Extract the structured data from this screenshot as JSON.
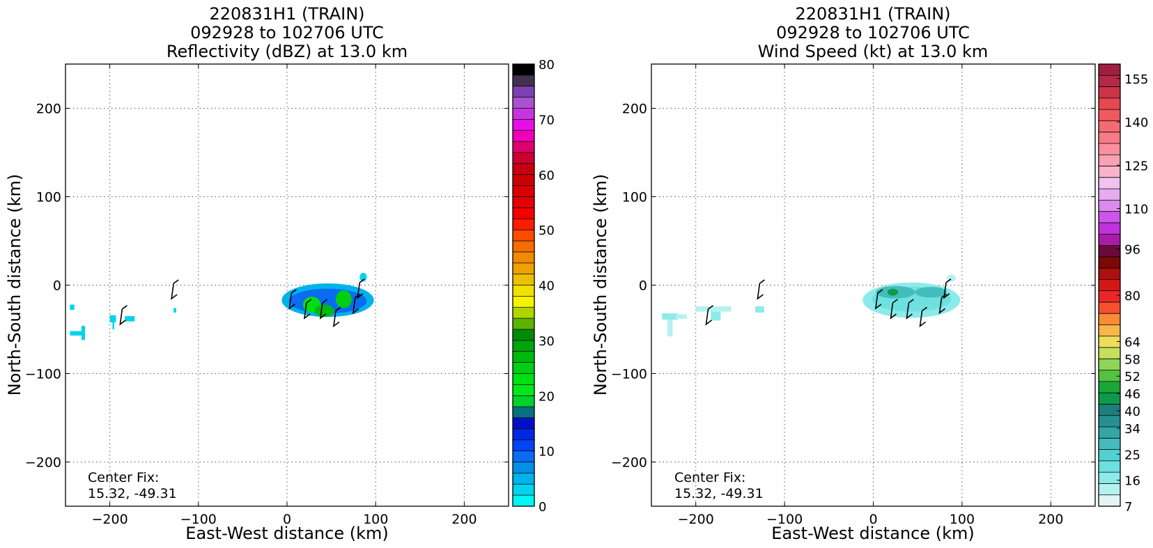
{
  "chart_data": [
    {
      "type": "heatmap",
      "title_lines": [
        "220831H1 (TRAIN)",
        "092928 to 102706 UTC",
        "Reflectivity (dBZ) at 13.0 km"
      ],
      "xlabel": "East-West distance (km)",
      "ylabel": "North-South distance (km)",
      "xlim": [
        -250,
        250
      ],
      "ylim": [
        -250,
        250
      ],
      "xticks": [
        -200,
        -100,
        0,
        100,
        200
      ],
      "xtick_labels": [
        "−200",
        "−100",
        "0",
        "100",
        "200"
      ],
      "yticks": [
        200,
        100,
        0,
        -100,
        -200
      ],
      "ytick_labels": [
        "200",
        "100",
        "0",
        "−100",
        "−200"
      ],
      "grid": true,
      "annotation_lines": [
        "Center Fix:",
        "15.32, -49.31"
      ],
      "colorbar": {
        "min": 0,
        "max": 80,
        "tick_values": [
          0,
          10,
          20,
          30,
          40,
          50,
          60,
          70,
          80
        ],
        "tick_labels": [
          "0",
          "10",
          "20",
          "30",
          "40",
          "50",
          "60",
          "70",
          "80"
        ],
        "colors": [
          "#00f5f5",
          "#00d3ef",
          "#00b2ea",
          "#0090e6",
          "#0a6cf0",
          "#0044f5",
          "#0028e0",
          "#0010c8",
          "#08707e",
          "#00d229",
          "#00e81c",
          "#00de14",
          "#00cf12",
          "#00b90e",
          "#00a40b",
          "#008b07",
          "#5cb400",
          "#b0d400",
          "#f6f300",
          "#f2e000",
          "#ebc000",
          "#eea200",
          "#f28a00",
          "#f56c00",
          "#fa4c00",
          "#fc1c00",
          "#f50000",
          "#e40000",
          "#d80000",
          "#cd0000",
          "#c70010",
          "#cc0030",
          "#df0070",
          "#f000b8",
          "#e60ee6",
          "#c835dc",
          "#aa50d2",
          "#7e40b0",
          "#443050",
          "#000000"
        ]
      },
      "echo_regions": [
        {
          "type": "rect",
          "x1": -245,
          "x2": -240,
          "y1": -22,
          "y2": -28,
          "color": "#00d3ef"
        },
        {
          "type": "rect",
          "x1": -245,
          "x2": -228,
          "y1": -52,
          "y2": -57,
          "color": "#00d3ef"
        },
        {
          "type": "rect",
          "x1": -232,
          "x2": -228,
          "y1": -46,
          "y2": -62,
          "color": "#00d3ef"
        },
        {
          "type": "rect",
          "x1": -200,
          "x2": -193,
          "y1": -34,
          "y2": -42,
          "color": "#00d3ef"
        },
        {
          "type": "rect",
          "x1": -197,
          "x2": -195,
          "y1": -42,
          "y2": -50,
          "color": "#00d3ef"
        },
        {
          "type": "rect",
          "x1": -183,
          "x2": -172,
          "y1": -35,
          "y2": -41,
          "color": "#00d3ef"
        },
        {
          "type": "rect",
          "x1": -128,
          "x2": -125,
          "y1": -26,
          "y2": -31,
          "color": "#00d3ef"
        },
        {
          "type": "ellipse",
          "cx": 46,
          "cy": -17,
          "rx": 52,
          "ry": 19,
          "color": "#00b2ea"
        },
        {
          "type": "ellipse",
          "cx": 46,
          "cy": -18,
          "rx": 44,
          "ry": 14,
          "color": "#0a6cf0"
        },
        {
          "type": "ellipse",
          "cx": 28,
          "cy": -22,
          "rx": 10,
          "ry": 9,
          "color": "#00de14"
        },
        {
          "type": "ellipse",
          "cx": 42,
          "cy": -29,
          "rx": 11,
          "ry": 7,
          "color": "#00b90e"
        },
        {
          "type": "ellipse",
          "cx": 64,
          "cy": -16,
          "rx": 9,
          "ry": 10,
          "color": "#00cf12"
        },
        {
          "type": "ellipse",
          "cx": 86,
          "cy": 9,
          "rx": 4,
          "ry": 5,
          "color": "#00d3ef"
        }
      ],
      "wind_barbs": [
        [
          -186,
          -27
        ],
        [
          -128,
          2
        ],
        [
          5,
          -9
        ],
        [
          22,
          -20
        ],
        [
          40,
          -20
        ],
        [
          55,
          -29
        ],
        [
          77,
          -14
        ],
        [
          82,
          3
        ]
      ]
    },
    {
      "type": "heatmap",
      "title_lines": [
        "220831H1 (TRAIN)",
        "092928 to 102706 UTC",
        "Wind Speed (kt) at 13.0 km"
      ],
      "xlabel": "East-West distance (km)",
      "ylabel": "North-South distance (km)",
      "xlim": [
        -250,
        250
      ],
      "ylim": [
        -250,
        250
      ],
      "xticks": [
        -200,
        -100,
        0,
        100,
        200
      ],
      "xtick_labels": [
        "−200",
        "−100",
        "0",
        "100",
        "200"
      ],
      "yticks": [
        200,
        100,
        0,
        -100,
        -200
      ],
      "ytick_labels": [
        "200",
        "100",
        "0",
        "−100",
        "−200"
      ],
      "grid": true,
      "annotation_lines": [
        "Center Fix:",
        "15.32, -49.31"
      ],
      "colorbar": {
        "min": 7,
        "max": 160,
        "tick_values": [
          7,
          16,
          25,
          34,
          40,
          46,
          52,
          58,
          64,
          80,
          96,
          110,
          125,
          140,
          155
        ],
        "tick_labels": [
          "7",
          "16",
          "25",
          "34",
          "40",
          "46",
          "52",
          "58",
          "64",
          "80",
          "96",
          "110",
          "125",
          "140",
          "155"
        ],
        "colors": [
          "#e4f3f3",
          "#b6f1f1",
          "#8deaea",
          "#6ee0e0",
          "#52d0d0",
          "#44bcbc",
          "#34a6a6",
          "#289090",
          "#1e7e7e",
          "#0e9a4e",
          "#18a838",
          "#52c240",
          "#90d458",
          "#c6e05c",
          "#eedc5a",
          "#f6b848",
          "#f88a38",
          "#f45030",
          "#e82828",
          "#d41818",
          "#ac1010",
          "#7c0808",
          "#6a0a3a",
          "#a81ca8",
          "#c232dc",
          "#cc56ea",
          "#dc8aee",
          "#e8aaf0",
          "#f2c2f0",
          "#f8b2ca",
          "#f8a2b2",
          "#fa909e",
          "#f87a86",
          "#f46a72",
          "#ee585e",
          "#e44850",
          "#cc3448",
          "#b42a46",
          "#a01e42"
        ]
      },
      "echo_regions": [
        {
          "type": "rect",
          "x1": -238,
          "x2": -220,
          "y1": -32,
          "y2": -39,
          "color": "#8deaea"
        },
        {
          "type": "rect",
          "x1": -232,
          "x2": -226,
          "y1": -39,
          "y2": -58,
          "color": "#b6f1f1"
        },
        {
          "type": "rect",
          "x1": -222,
          "x2": -210,
          "y1": -33,
          "y2": -38,
          "color": "#b6f1f1"
        },
        {
          "type": "rect",
          "x1": -200,
          "x2": -160,
          "y1": -24,
          "y2": -30,
          "color": "#b6f1f1"
        },
        {
          "type": "rect",
          "x1": -183,
          "x2": -172,
          "y1": -30,
          "y2": -40,
          "color": "#8deaea"
        },
        {
          "type": "rect",
          "x1": -133,
          "x2": -123,
          "y1": -24,
          "y2": -31,
          "color": "#8deaea"
        },
        {
          "type": "ellipse",
          "cx": 43,
          "cy": -17,
          "rx": 55,
          "ry": 20,
          "color": "#8deaea"
        },
        {
          "type": "ellipse",
          "cx": 43,
          "cy": -16,
          "rx": 45,
          "ry": 14,
          "color": "#6ee0e0"
        },
        {
          "type": "ellipse",
          "cx": 25,
          "cy": -8,
          "rx": 22,
          "ry": 7,
          "color": "#44bcbc"
        },
        {
          "type": "ellipse",
          "cx": 65,
          "cy": -8,
          "rx": 18,
          "ry": 6,
          "color": "#44bcbc"
        },
        {
          "type": "ellipse",
          "cx": 22,
          "cy": -8,
          "rx": 6,
          "ry": 4,
          "color": "#0e9a4e"
        },
        {
          "type": "ellipse",
          "cx": 88,
          "cy": 8,
          "rx": 5,
          "ry": 4,
          "color": "#b6f1f1"
        }
      ],
      "wind_barbs": [
        [
          -186,
          -27
        ],
        [
          -128,
          2
        ],
        [
          5,
          -9
        ],
        [
          22,
          -20
        ],
        [
          40,
          -20
        ],
        [
          55,
          -29
        ],
        [
          77,
          -14
        ],
        [
          82,
          3
        ]
      ]
    }
  ]
}
